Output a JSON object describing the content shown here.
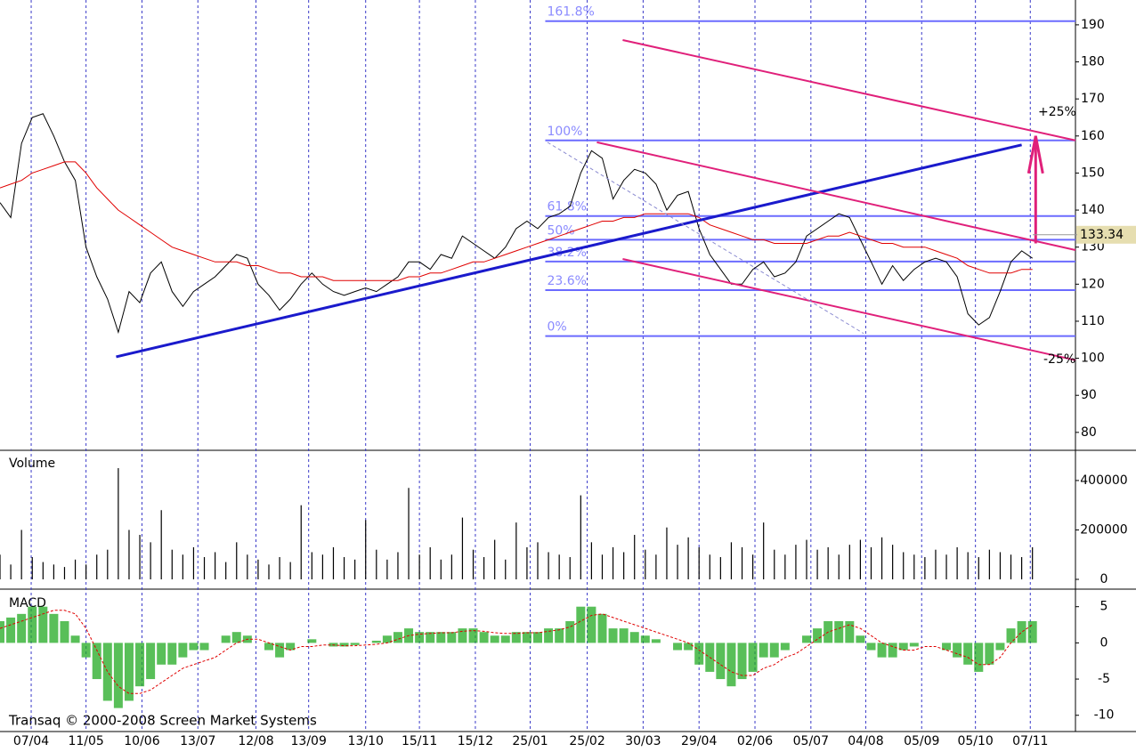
{
  "chart_data": [
    {
      "type": "line",
      "ylim": [
        75.4,
        196.7
      ],
      "yticks": [
        80,
        90,
        100,
        110,
        120,
        130,
        140,
        150,
        160,
        170,
        180,
        190
      ],
      "series": [
        {
          "color": "#000000",
          "values": [
            142,
            138,
            158,
            165,
            166,
            160,
            153,
            148,
            130,
            122,
            116,
            107,
            118,
            115,
            123,
            126,
            118,
            114,
            118,
            120,
            122,
            125,
            128,
            127,
            120,
            117,
            113,
            116,
            120,
            123,
            120,
            118,
            117,
            118,
            119,
            118,
            120,
            122,
            126,
            126,
            124,
            128,
            127,
            133,
            131,
            129,
            127,
            130,
            135,
            137,
            135,
            138,
            139,
            141,
            150,
            156,
            154,
            143,
            148,
            151,
            150,
            147,
            140,
            144,
            145,
            135,
            128,
            124,
            120,
            120,
            124,
            126,
            122,
            123,
            126,
            133,
            135,
            137,
            139,
            138,
            132,
            126,
            120,
            125,
            121,
            124,
            126,
            127,
            126,
            122,
            112,
            109,
            111,
            118,
            126,
            129,
            127
          ]
        },
        {
          "color": "#e00000",
          "values": [
            146,
            147,
            148,
            150,
            151,
            152,
            153,
            153,
            150,
            146,
            143,
            140,
            138,
            136,
            134,
            132,
            130,
            129,
            128,
            127,
            126,
            126,
            126,
            125,
            125,
            124,
            123,
            123,
            122,
            122,
            122,
            121,
            121,
            121,
            121,
            121,
            121,
            121,
            122,
            122,
            123,
            123,
            124,
            125,
            126,
            126,
            127,
            128,
            129,
            130,
            131,
            132,
            133,
            134,
            135,
            136,
            137,
            137,
            138,
            138,
            139,
            139,
            139,
            139,
            139,
            138,
            136,
            135,
            134,
            133,
            132,
            132,
            131,
            131,
            131,
            131,
            132,
            133,
            133,
            134,
            133,
            132,
            131,
            131,
            130,
            130,
            130,
            129,
            128,
            127,
            125,
            124,
            123,
            123,
            123,
            124,
            124
          ]
        }
      ],
      "last_value": 133.34,
      "fibonacci": {
        "x_start": 50.7,
        "color": "#6b6bff",
        "levels": [
          {
            "label": "161.8%",
            "price": 191
          },
          {
            "label": "100%",
            "price": 158.8
          },
          {
            "label": "61.8%",
            "price": 138.4
          },
          {
            "label": "50%",
            "price": 132
          },
          {
            "label": "38.2%",
            "price": 126.1
          },
          {
            "label": "23.6%",
            "price": 118.4
          },
          {
            "label": "0%",
            "price": 106
          }
        ]
      },
      "trendlines": [
        {
          "color": "#1a1acc",
          "width": 3,
          "x": [
            10.8,
            95
          ],
          "values": [
            100.4,
            157.6
          ]
        },
        {
          "color": "#e0207a",
          "width": 2,
          "x": [
            57.9,
            100
          ],
          "values": [
            185.9,
            158.8
          ]
        },
        {
          "color": "#e0207a",
          "width": 2,
          "x": [
            55.5,
            100
          ],
          "values": [
            158.3,
            129.2
          ]
        },
        {
          "color": "#e0207a",
          "width": 2,
          "x": [
            57.9,
            100
          ],
          "values": [
            126.8,
            99.5
          ]
        },
        {
          "color": "#8a8ad0",
          "width": 1,
          "dashed": true,
          "x": [
            50.9,
            80.3
          ],
          "values": [
            158.3,
            106.7
          ]
        }
      ],
      "arrow": {
        "color": "#e0207a",
        "x": 96.3,
        "values": [
          131,
          160
        ]
      },
      "annotations": [
        "+25%",
        "-25%"
      ]
    },
    {
      "type": "bar",
      "title": "Volume",
      "color": "#000000",
      "ylim": [
        0,
        515000
      ],
      "yticks": [
        0,
        200000,
        400000
      ],
      "values": [
        100000,
        60000,
        200000,
        90000,
        70000,
        60000,
        50000,
        80000,
        60000,
        100000,
        120000,
        450000,
        200000,
        180000,
        150000,
        280000,
        120000,
        100000,
        130000,
        90000,
        110000,
        70000,
        150000,
        100000,
        80000,
        60000,
        90000,
        70000,
        300000,
        110000,
        100000,
        130000,
        90000,
        80000,
        240000,
        120000,
        80000,
        110000,
        370000,
        100000,
        130000,
        80000,
        100000,
        250000,
        120000,
        90000,
        160000,
        80000,
        230000,
        130000,
        150000,
        110000,
        100000,
        90000,
        340000,
        150000,
        100000,
        130000,
        110000,
        180000,
        120000,
        100000,
        210000,
        140000,
        170000,
        130000,
        100000,
        90000,
        150000,
        130000,
        100000,
        230000,
        120000,
        100000,
        140000,
        160000,
        120000,
        130000,
        100000,
        140000,
        160000,
        130000,
        170000,
        140000,
        110000,
        100000,
        90000,
        120000,
        100000,
        130000,
        110000,
        90000,
        120000,
        110000,
        100000,
        90000,
        130000
      ]
    },
    {
      "type": "macd",
      "title": "MACD",
      "ylim": [
        -12,
        7.3
      ],
      "yticks": [
        -10,
        -5,
        0,
        5
      ],
      "histogram": {
        "color": "#22aa22",
        "values": [
          3,
          3.5,
          4,
          5,
          5,
          4,
          3,
          1,
          -2,
          -5,
          -8,
          -9,
          -8,
          -6,
          -5,
          -3,
          -3,
          -2,
          -1,
          -1,
          0,
          1,
          1.5,
          1,
          0,
          -1,
          -2,
          -1,
          0,
          0.5,
          0,
          -0.5,
          -0.5,
          -0.3,
          0,
          0.3,
          1,
          1.5,
          2,
          1.5,
          1.5,
          1.5,
          1.5,
          2,
          2,
          1.5,
          1,
          1,
          1.5,
          1.5,
          1.5,
          2,
          2,
          3,
          5,
          5,
          4,
          2,
          2,
          1.5,
          1,
          0.5,
          0,
          -1,
          -1,
          -3,
          -4,
          -5,
          -6,
          -5,
          -4,
          -2,
          -2,
          -1,
          0,
          1,
          2,
          3,
          3,
          3,
          1,
          -1,
          -2,
          -2,
          -1,
          -0.5,
          0,
          0,
          -1,
          -2,
          -3,
          -4,
          -3,
          -1,
          2,
          3,
          3
        ]
      },
      "signal": {
        "color": "#e00000",
        "values": [
          2,
          2.5,
          3,
          3.5,
          4,
          4.5,
          4.5,
          4,
          2,
          -1,
          -4,
          -6,
          -7,
          -7,
          -6.5,
          -5.5,
          -4.5,
          -3.5,
          -3,
          -2.5,
          -2,
          -1,
          0,
          0.5,
          0.5,
          0,
          -0.5,
          -1,
          -0.5,
          -0.5,
          -0.3,
          -0.3,
          -0.4,
          -0.4,
          -0.3,
          -0.2,
          0,
          0.5,
          1,
          1.2,
          1.3,
          1.4,
          1.4,
          1.6,
          1.7,
          1.6,
          1.4,
          1.3,
          1.3,
          1.4,
          1.4,
          1.6,
          1.8,
          2.2,
          3,
          3.8,
          4,
          3.5,
          3,
          2.5,
          2,
          1.5,
          1,
          0.5,
          0,
          -1,
          -2,
          -3,
          -4,
          -4.5,
          -4.5,
          -3.5,
          -3,
          -2,
          -1.5,
          -0.5,
          0.5,
          1.5,
          2,
          2.5,
          2,
          1,
          0,
          -0.5,
          -1,
          -1,
          -0.5,
          -0.5,
          -1,
          -1.5,
          -2,
          -3,
          -3,
          -2,
          0,
          1.5,
          2.5
        ]
      },
      "xlim": [
        0,
        100
      ],
      "xticks": [
        {
          "value": 2.9,
          "label": "07/04"
        },
        {
          "value": 8.0,
          "label": "11/05"
        },
        {
          "value": 13.2,
          "label": "10/06"
        },
        {
          "value": 18.4,
          "label": "13/07"
        },
        {
          "value": 23.8,
          "label": "12/08"
        },
        {
          "value": 28.7,
          "label": "13/09"
        },
        {
          "value": 34.0,
          "label": "13/10"
        },
        {
          "value": 39.0,
          "label": "15/11"
        },
        {
          "value": 44.2,
          "label": "15/12"
        },
        {
          "value": 49.3,
          "label": "25/01"
        },
        {
          "value": 54.6,
          "label": "25/02"
        },
        {
          "value": 59.8,
          "label": "30/03"
        },
        {
          "value": 65.0,
          "label": "29/04"
        },
        {
          "value": 70.2,
          "label": "02/06"
        },
        {
          "value": 75.4,
          "label": "05/07"
        },
        {
          "value": 80.5,
          "label": "04/08"
        },
        {
          "value": 85.7,
          "label": "05/09"
        },
        {
          "value": 90.7,
          "label": "05/10"
        },
        {
          "value": 95.8,
          "label": "07/11"
        }
      ],
      "grid": true,
      "annotation": "Transaq © 2000-2008 Screen Market Systems"
    }
  ]
}
